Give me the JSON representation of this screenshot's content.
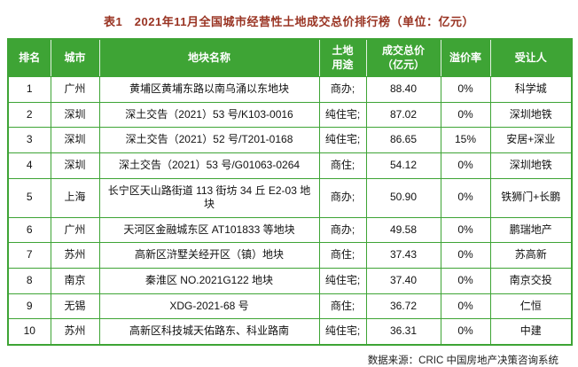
{
  "title": "表1　2021年11月全国城市经营性土地成交总价排行榜（单位：亿元）",
  "source": "数据来源：CRIC 中国房地产决策咨询系统",
  "colors": {
    "header_bg": "#3ea435",
    "border_color": "#3ea435",
    "title_color": "#993322"
  },
  "table": {
    "headers": [
      "排名",
      "城市",
      "地块名称",
      "土地\n用途",
      "成交总价\n（亿元）",
      "溢价率",
      "受让人"
    ],
    "rows": [
      [
        "1",
        "广州",
        "黄埔区黄埔东路以南乌涌以东地块",
        "商办;",
        "88.40",
        "0%",
        "科学城"
      ],
      [
        "2",
        "深圳",
        "深土交告（2021）53 号/K103-0016",
        "纯住宅;",
        "87.02",
        "0%",
        "深圳地铁"
      ],
      [
        "3",
        "深圳",
        "深土交告（2021）52 号/T201-0168",
        "纯住宅;",
        "86.65",
        "15%",
        "安居+深业"
      ],
      [
        "4",
        "深圳",
        "深土交告（2021）53 号/G01063-0264",
        "商住;",
        "54.12",
        "0%",
        "深圳地铁"
      ],
      [
        "5",
        "上海",
        "长宁区天山路街道 113 街坊 34 丘 E2-03 地块",
        "商办;",
        "50.90",
        "0%",
        "铁狮门+长鹏"
      ],
      [
        "6",
        "广州",
        "天河区金融城东区 AT101833 等地块",
        "商办;",
        "49.58",
        "0%",
        "鹏瑞地产"
      ],
      [
        "7",
        "苏州",
        "高新区浒墅关经开区（镇）地块",
        "商住;",
        "37.43",
        "0%",
        "苏高新"
      ],
      [
        "8",
        "南京",
        "秦淮区 NO.2021G122 地块",
        "纯住宅;",
        "37.40",
        "0%",
        "南京交投"
      ],
      [
        "9",
        "无锡",
        "XDG-2021-68 号",
        "商住;",
        "36.72",
        "0%",
        "仁恒"
      ],
      [
        "10",
        "苏州",
        "高新区科技城天佑路东、科业路南",
        "纯住宅;",
        "36.31",
        "0%",
        "中建"
      ]
    ]
  }
}
